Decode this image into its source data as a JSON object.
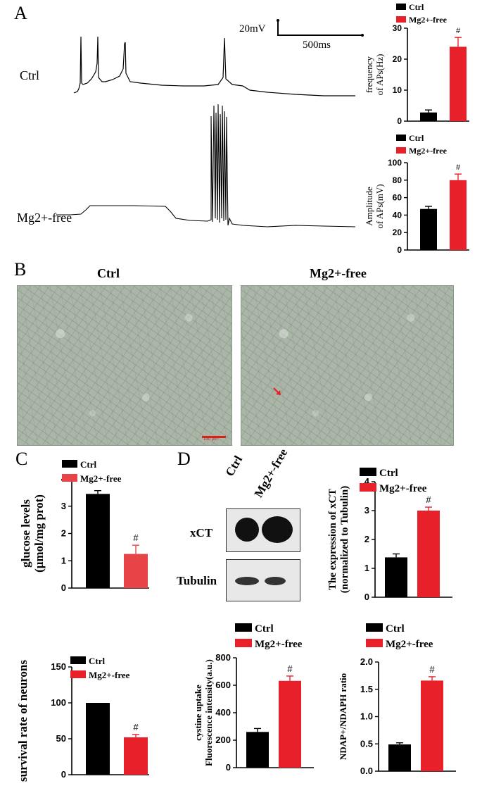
{
  "panels": {
    "A": "A",
    "B": "B",
    "C": "C",
    "D": "D"
  },
  "panelA": {
    "trace_labels": {
      "ctrl": "Ctrl",
      "mg": "Mg2+-free"
    },
    "scalebar": {
      "voltage": "20mV",
      "time": "500ms"
    }
  },
  "panelB": {
    "titles": {
      "ctrl": "Ctrl",
      "mg": "Mg2+-free"
    },
    "scale_text": "100 μm"
  },
  "panelD": {
    "lane_labels": {
      "ctrl": "Ctrl",
      "mg": "Mg2+-free"
    },
    "blot_labels": {
      "xct": "xCT",
      "tubulin": "Tubulin"
    }
  },
  "colors": {
    "ctrl": "#000000",
    "mg": "#e8202a",
    "mg_light": "#e84448"
  },
  "chart_data": [
    {
      "id": "freq",
      "type": "bar",
      "categories": [
        "Ctrl",
        "Mg2+-free"
      ],
      "values": [
        2.8,
        24
      ],
      "errors": [
        0.8,
        3
      ],
      "ylabel": [
        "frequency",
        "of APs(Hz)"
      ],
      "ylim": [
        0,
        30
      ],
      "yticks": [
        0,
        10,
        20,
        30
      ],
      "annotation": "#",
      "legend": [
        "Ctrl",
        "Mg2+-free"
      ]
    },
    {
      "id": "amp",
      "type": "bar",
      "categories": [
        "Ctrl",
        "Mg2+-free"
      ],
      "values": [
        47,
        80
      ],
      "errors": [
        3,
        7
      ],
      "ylabel": [
        "Amplitude",
        "of APs(mV)"
      ],
      "ylim": [
        0,
        100
      ],
      "yticks": [
        0,
        20,
        40,
        60,
        80,
        100
      ],
      "annotation": "#",
      "legend": [
        "Ctrl",
        "Mg2+-free"
      ]
    },
    {
      "id": "glucose",
      "type": "bar",
      "categories": [
        "Ctrl",
        "Mg2+-free"
      ],
      "values": [
        3.45,
        1.25
      ],
      "errors": [
        0.12,
        0.32
      ],
      "ylabel": [
        "glucose levels",
        "(μmol/mg prot)"
      ],
      "ylim": [
        0,
        4
      ],
      "yticks": [
        0,
        1,
        2,
        3,
        4
      ],
      "annotation": "#",
      "legend": [
        "Ctrl",
        "Mg2+-free"
      ]
    },
    {
      "id": "survival",
      "type": "bar",
      "categories": [
        "Ctrl",
        "Mg2+-free"
      ],
      "values": [
        100,
        52
      ],
      "errors": [
        0,
        4
      ],
      "ylabel": [
        "survival rate of neurons"
      ],
      "ylim": [
        0,
        150
      ],
      "yticks": [
        0,
        50,
        100,
        150
      ],
      "annotation": "#",
      "legend": [
        "Ctrl",
        "Mg2+-free"
      ]
    },
    {
      "id": "xct",
      "type": "bar",
      "categories": [
        "Ctrl",
        "Mg2+-free"
      ],
      "values": [
        1.38,
        3.0
      ],
      "errors": [
        0.12,
        0.12
      ],
      "ylabel": [
        "The expression of xCT",
        "(normalized to  Tubulin)"
      ],
      "ylim": [
        0,
        4
      ],
      "yticks": [
        0,
        1,
        2,
        3,
        4
      ],
      "annotation": "#",
      "legend": [
        "Ctrl",
        "Mg2+-free"
      ]
    },
    {
      "id": "cystine",
      "type": "bar",
      "categories": [
        "Ctrl",
        "Mg2+-free"
      ],
      "values": [
        260,
        632
      ],
      "errors": [
        25,
        35
      ],
      "ylabel": [
        "cystine uptake",
        "Fluorescence intensity(a.u.)"
      ],
      "ylim": [
        0,
        800
      ],
      "yticks": [
        0,
        200,
        400,
        600,
        800
      ],
      "annotation": "#",
      "legend": [
        "Ctrl",
        "Mg2+-free"
      ]
    },
    {
      "id": "ndap",
      "type": "bar",
      "categories": [
        "Ctrl",
        "Mg2+-free"
      ],
      "values": [
        0.49,
        1.66
      ],
      "errors": [
        0.03,
        0.07
      ],
      "ylabel": [
        "NDAP+/NDAPH ratio"
      ],
      "ylim": [
        0,
        2.0
      ],
      "yticks": [
        "0.0",
        "0.5",
        "1.0",
        "1.5",
        "2.0"
      ],
      "annotation": "#",
      "legend": [
        "Ctrl",
        "Mg2+-free"
      ]
    }
  ]
}
